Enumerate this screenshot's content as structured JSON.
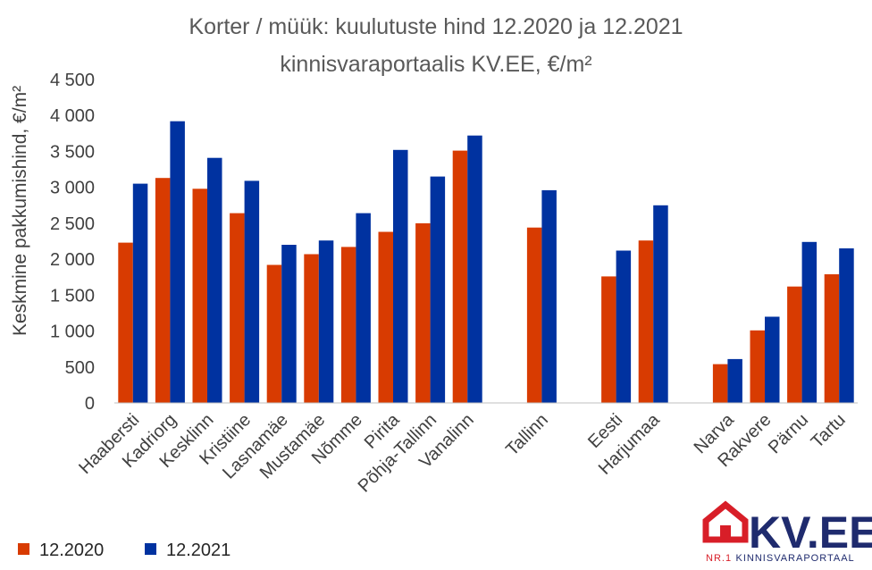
{
  "chart_data": {
    "type": "bar",
    "title_line1": "Korter / müük: kuulutuste hind 12.2020 ja 12.2021",
    "title_line2": "kinnisvaraportaalis KV.EE, €/m²",
    "ylabel": "Keskmine pakkumishind, €/m²",
    "xlabel": "",
    "ylim": [
      0,
      4500
    ],
    "yticks": [
      0,
      500,
      1000,
      1500,
      2000,
      2500,
      3000,
      3500,
      4000,
      4500
    ],
    "ytick_labels": [
      "0",
      "500",
      "1 000",
      "1 500",
      "2 000",
      "2 500",
      "3 000",
      "3 500",
      "4 000",
      "4 500"
    ],
    "grid": false,
    "legend_position": "bottom-left",
    "categories": [
      "Haabersti",
      "Kadriorg",
      "Kesklinn",
      "Kristiine",
      "Lasnamäe",
      "Mustamäe",
      "Nõmme",
      "Pirita",
      "Põhja-Tallinn",
      "Vanalinn",
      "",
      "Tallinn",
      "",
      "Eesti",
      "Harjumaa",
      "",
      "Narva",
      "Rakvere",
      "Pärnu",
      "Tartu"
    ],
    "series": [
      {
        "name": "12.2020",
        "color": "#d83b01",
        "values": [
          2230,
          3130,
          2980,
          2640,
          1920,
          2070,
          2170,
          2380,
          2500,
          3510,
          null,
          2440,
          null,
          1760,
          2260,
          null,
          540,
          1010,
          1620,
          1790
        ]
      },
      {
        "name": "12.2021",
        "color": "#0032a0",
        "values": [
          3050,
          3920,
          3410,
          3090,
          2200,
          2260,
          2640,
          3520,
          3150,
          3720,
          null,
          2960,
          null,
          2120,
          2750,
          null,
          610,
          1200,
          2240,
          2150
        ]
      }
    ]
  },
  "logo": {
    "text": "KV.EE",
    "sub_prefix": "NR.1",
    "sub_text": "KINNISVARAPORTAAL",
    "red": "#d81e28",
    "navy": "#1f2b6e"
  }
}
